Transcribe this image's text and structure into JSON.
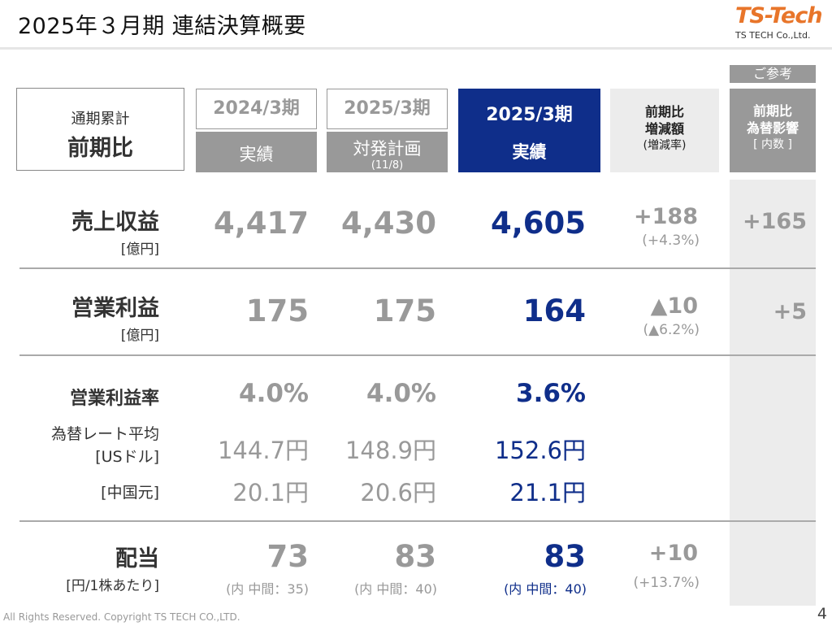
{
  "title": "2025年３月期 連結決算概要",
  "logo": {
    "mark": "TS-Tech",
    "company": "TS TECH Co.,Ltd."
  },
  "header_box": {
    "small": "通期累計",
    "big": "前期比"
  },
  "columns": {
    "prev": {
      "year": "2024/3期",
      "label": "実績"
    },
    "plan": {
      "year": "2025/3期",
      "label": "対発計画",
      "note": "(11/8)"
    },
    "actual": {
      "year": "2025/3期",
      "label": "実績"
    },
    "diff": {
      "line1": "前期比",
      "line2": "増減額",
      "line3": "(増減率)"
    },
    "fx": {
      "tag": "ご参考",
      "line1": "前期比",
      "line2": "為替影響",
      "line3": "[ 内数 ]"
    }
  },
  "rows": {
    "revenue": {
      "label": "売上収益",
      "unit": "[億円]",
      "prev": "4,417",
      "plan": "4,430",
      "actual": "4,605",
      "diff": "+188",
      "diff_rate": "(+4.3%)",
      "fx": "+165"
    },
    "op_income": {
      "label": "営業利益",
      "unit": "[億円]",
      "prev": "175",
      "plan": "175",
      "actual": "164",
      "diff": "▲10",
      "diff_rate": "(▲6.2%)",
      "fx": "+5"
    },
    "op_margin": {
      "label": "営業利益率",
      "prev": "4.0%",
      "plan": "4.0%",
      "actual": "3.6%"
    },
    "fx_usd": {
      "label1": "為替レート平均",
      "label2": "[USドル]",
      "prev": "144.7円",
      "plan": "148.9円",
      "actual": "152.6円"
    },
    "fx_cny": {
      "label": "[中国元]",
      "prev": "20.1円",
      "plan": "20.6円",
      "actual": "21.1円"
    },
    "dividend": {
      "label": "配当",
      "unit": "[円/1株あたり]",
      "prev": "73",
      "plan": "83",
      "actual": "83",
      "prev_note": "(内 中間：35)",
      "plan_note": "(内 中間：40)",
      "actual_note": "(内 中間：40)",
      "diff": "+10",
      "diff_rate": "(+13.7%)"
    }
  },
  "footer": "All Rights Reserved. Copyright TS TECH CO.,LTD.",
  "page_number": "4"
}
